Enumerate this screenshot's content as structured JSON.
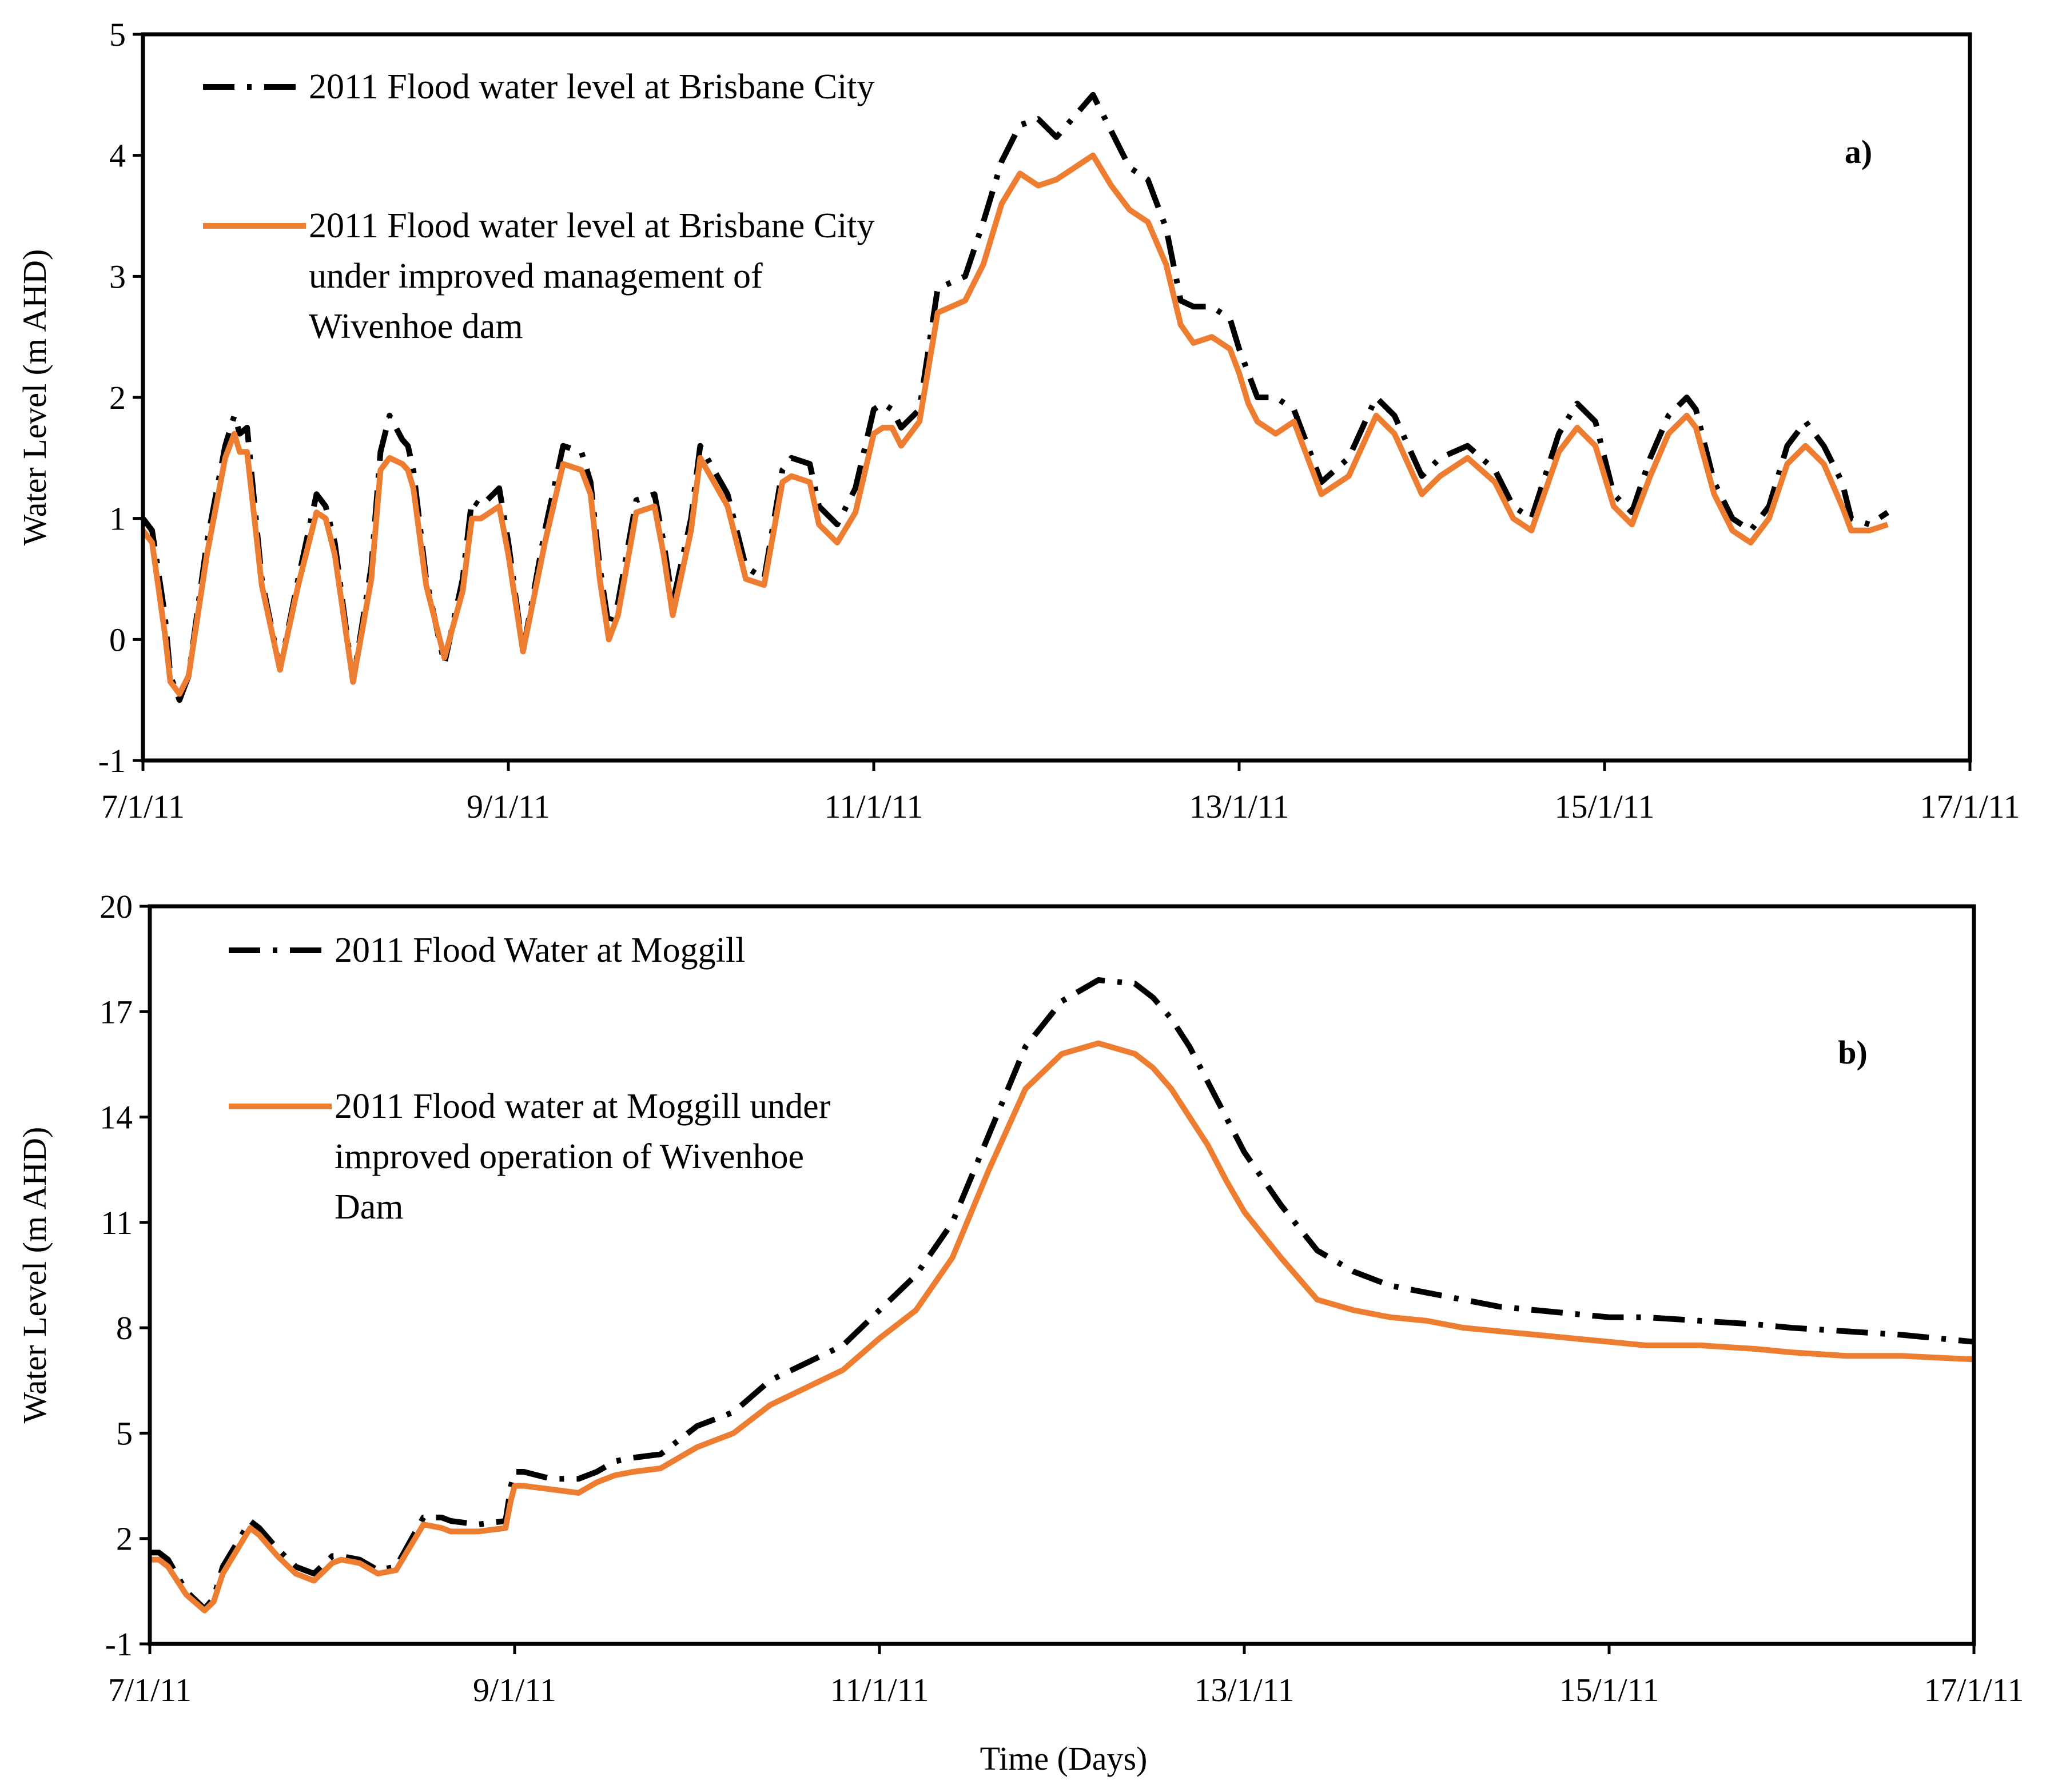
{
  "chart_data": [
    {
      "type": "line",
      "panel_label": "a)",
      "xlabel": "",
      "ylabel": "Water Level (m AHD)",
      "xlim": [
        0,
        10
      ],
      "ylim": [
        -1,
        5
      ],
      "x_tick_values": [
        0,
        2,
        4,
        6,
        8,
        10
      ],
      "x_tick_labels": [
        "7/1/11",
        "9/1/11",
        "11/1/11",
        "13/1/11",
        "15/1/11",
        "17/1/11"
      ],
      "y_ticks": [
        -1,
        0,
        1,
        2,
        3,
        4,
        5
      ],
      "grid": false,
      "legend_position": "top-left",
      "series": [
        {
          "name": "2011 Flood water level at Brisbane City",
          "style": "dash-dot",
          "color": "#000000",
          "x": [
            0,
            0.05,
            0.12,
            0.15,
            0.2,
            0.25,
            0.35,
            0.45,
            0.5,
            0.53,
            0.57,
            0.65,
            0.75,
            0.85,
            0.95,
            1.0,
            1.05,
            1.15,
            1.25,
            1.3,
            1.35,
            1.42,
            1.45,
            1.48,
            1.55,
            1.65,
            1.75,
            1.8,
            1.85,
            1.95,
            2.0,
            2.08,
            2.2,
            2.3,
            2.4,
            2.45,
            2.5,
            2.55,
            2.6,
            2.7,
            2.8,
            2.85,
            2.9,
            3.0,
            3.05,
            3.2,
            3.3,
            3.4,
            3.5,
            3.55,
            3.65,
            3.7,
            3.8,
            3.9,
            4.0,
            4.05,
            4.1,
            4.15,
            4.25,
            4.35,
            4.5,
            4.6,
            4.7,
            4.8,
            4.9,
            5.0,
            5.2,
            5.3,
            5.4,
            5.5,
            5.6,
            5.68,
            5.75,
            5.85,
            5.95,
            6.0,
            6.05,
            6.1,
            6.2,
            6.3,
            6.45,
            6.6,
            6.75,
            6.85,
            7.0,
            7.1,
            7.25,
            7.4,
            7.5,
            7.6,
            7.75,
            7.85,
            7.95,
            8.05,
            8.15,
            8.25,
            8.35,
            8.45,
            8.5,
            8.6,
            8.7,
            8.8,
            8.9,
            9.0,
            9.1,
            9.2,
            9.3,
            9.35,
            9.45,
            9.55
          ],
          "y": [
            1.0,
            0.9,
            0.2,
            -0.3,
            -0.5,
            -0.3,
            0.8,
            1.6,
            1.85,
            1.7,
            1.75,
            0.5,
            -0.25,
            0.5,
            1.2,
            1.1,
            0.8,
            -0.35,
            0.6,
            1.55,
            1.85,
            1.65,
            1.6,
            1.4,
            0.5,
            -0.2,
            0.5,
            1.15,
            1.1,
            1.25,
            0.8,
            -0.1,
            0.9,
            1.6,
            1.55,
            1.3,
            0.6,
            0.1,
            0.3,
            1.15,
            1.2,
            0.8,
            0.3,
            1.0,
            1.6,
            1.2,
            0.6,
            0.5,
            1.4,
            1.5,
            1.45,
            1.1,
            0.95,
            1.25,
            1.9,
            1.95,
            1.9,
            1.75,
            1.9,
            2.9,
            3.0,
            3.45,
            3.95,
            4.25,
            4.3,
            4.15,
            4.5,
            4.2,
            3.9,
            3.8,
            3.4,
            2.8,
            2.75,
            2.75,
            2.65,
            2.4,
            2.2,
            2.0,
            2.0,
            1.9,
            1.3,
            1.5,
            2.0,
            1.85,
            1.35,
            1.5,
            1.6,
            1.4,
            1.1,
            1.0,
            1.7,
            1.95,
            1.8,
            1.2,
            1.05,
            1.5,
            1.85,
            2.0,
            1.9,
            1.3,
            1.0,
            0.9,
            1.1,
            1.6,
            1.8,
            1.6,
            1.3,
            1.0,
            0.95,
            1.05
          ]
        },
        {
          "name": "2011 Flood water level at Brisbane City under improved management of Wivenhoe dam",
          "style": "solid",
          "color": "#ED7D31",
          "x": [
            0,
            0.05,
            0.12,
            0.15,
            0.2,
            0.25,
            0.35,
            0.45,
            0.5,
            0.53,
            0.57,
            0.65,
            0.75,
            0.85,
            0.95,
            1.0,
            1.05,
            1.15,
            1.25,
            1.3,
            1.35,
            1.42,
            1.45,
            1.48,
            1.55,
            1.65,
            1.75,
            1.8,
            1.85,
            1.95,
            2.0,
            2.08,
            2.2,
            2.3,
            2.4,
            2.45,
            2.5,
            2.55,
            2.6,
            2.7,
            2.8,
            2.85,
            2.9,
            3.0,
            3.05,
            3.2,
            3.3,
            3.4,
            3.5,
            3.55,
            3.65,
            3.7,
            3.8,
            3.9,
            4.0,
            4.05,
            4.1,
            4.15,
            4.25,
            4.35,
            4.5,
            4.6,
            4.7,
            4.8,
            4.9,
            5.0,
            5.2,
            5.3,
            5.4,
            5.5,
            5.6,
            5.68,
            5.75,
            5.85,
            5.95,
            6.0,
            6.05,
            6.1,
            6.2,
            6.3,
            6.45,
            6.6,
            6.75,
            6.85,
            7.0,
            7.1,
            7.25,
            7.4,
            7.5,
            7.6,
            7.75,
            7.85,
            7.95,
            8.05,
            8.15,
            8.25,
            8.35,
            8.45,
            8.5,
            8.6,
            8.7,
            8.8,
            8.9,
            9.0,
            9.1,
            9.2,
            9.3,
            9.35,
            9.45,
            9.55
          ],
          "y": [
            0.9,
            0.8,
            0.05,
            -0.35,
            -0.45,
            -0.3,
            0.7,
            1.5,
            1.7,
            1.55,
            1.55,
            0.45,
            -0.25,
            0.45,
            1.05,
            1.0,
            0.7,
            -0.35,
            0.5,
            1.4,
            1.5,
            1.45,
            1.4,
            1.25,
            0.45,
            -0.15,
            0.4,
            1.0,
            1.0,
            1.1,
            0.7,
            -0.1,
            0.8,
            1.45,
            1.4,
            1.2,
            0.5,
            0.0,
            0.2,
            1.05,
            1.1,
            0.7,
            0.2,
            0.9,
            1.5,
            1.1,
            0.5,
            0.45,
            1.3,
            1.35,
            1.3,
            0.95,
            0.8,
            1.05,
            1.7,
            1.75,
            1.75,
            1.6,
            1.8,
            2.7,
            2.8,
            3.1,
            3.6,
            3.85,
            3.75,
            3.8,
            4.0,
            3.75,
            3.55,
            3.45,
            3.1,
            2.6,
            2.45,
            2.5,
            2.4,
            2.2,
            1.95,
            1.8,
            1.7,
            1.8,
            1.2,
            1.35,
            1.85,
            1.7,
            1.2,
            1.35,
            1.5,
            1.3,
            1.0,
            0.9,
            1.55,
            1.75,
            1.6,
            1.1,
            0.95,
            1.35,
            1.7,
            1.85,
            1.75,
            1.2,
            0.9,
            0.8,
            1.0,
            1.45,
            1.6,
            1.45,
            1.1,
            0.9,
            0.9,
            0.95
          ]
        }
      ]
    },
    {
      "type": "line",
      "panel_label": "b)",
      "xlabel": "Time (Days)",
      "ylabel": "Water Level (m AHD)",
      "xlim": [
        0,
        10
      ],
      "ylim": [
        -1,
        20
      ],
      "x_tick_values": [
        0,
        2,
        4,
        6,
        8,
        10
      ],
      "x_tick_labels": [
        "7/1/11",
        "9/1/11",
        "11/1/11",
        "13/1/11",
        "15/1/11",
        "17/1/11"
      ],
      "y_ticks": [
        -1,
        2,
        5,
        8,
        11,
        14,
        17,
        20
      ],
      "grid": false,
      "legend_position": "top-left",
      "series": [
        {
          "name": "2011 Flood Water at Moggill",
          "style": "dash-dot",
          "color": "#000000",
          "x": [
            0,
            0.05,
            0.1,
            0.2,
            0.3,
            0.35,
            0.4,
            0.55,
            0.6,
            0.7,
            0.8,
            0.9,
            1.0,
            1.05,
            1.15,
            1.25,
            1.35,
            1.5,
            1.6,
            1.65,
            1.8,
            1.95,
            1.98,
            2.0,
            2.05,
            2.2,
            2.35,
            2.45,
            2.55,
            2.65,
            2.8,
            3.0,
            3.2,
            3.4,
            3.6,
            3.8,
            4.0,
            4.2,
            4.4,
            4.6,
            4.8,
            5.0,
            5.2,
            5.4,
            5.5,
            5.6,
            5.7,
            5.8,
            5.9,
            6.0,
            6.2,
            6.4,
            6.6,
            6.8,
            7.0,
            7.2,
            7.4,
            7.6,
            7.8,
            8.0,
            8.2,
            8.5,
            8.8,
            9.0,
            9.3,
            9.6,
            10.0
          ],
          "y": [
            1.6,
            1.6,
            1.4,
            0.5,
            0.0,
            0.3,
            1.2,
            2.5,
            2.3,
            1.7,
            1.2,
            1.0,
            1.5,
            1.5,
            1.4,
            1.1,
            1.2,
            2.6,
            2.6,
            2.5,
            2.4,
            2.5,
            3.5,
            3.9,
            3.9,
            3.7,
            3.7,
            3.9,
            4.2,
            4.3,
            4.4,
            5.2,
            5.6,
            6.5,
            7.0,
            7.5,
            8.5,
            9.5,
            11.0,
            13.5,
            16.0,
            17.3,
            17.9,
            17.8,
            17.4,
            16.8,
            16.0,
            15.0,
            14.0,
            13.0,
            11.5,
            10.2,
            9.6,
            9.2,
            9.0,
            8.8,
            8.6,
            8.5,
            8.4,
            8.3,
            8.3,
            8.2,
            8.1,
            8.0,
            7.9,
            7.8,
            7.6
          ]
        },
        {
          "name": "2011 Flood water at Moggill under improved operation of Wivenhoe Dam",
          "style": "solid",
          "color": "#ED7D31",
          "x": [
            0,
            0.05,
            0.1,
            0.2,
            0.3,
            0.35,
            0.4,
            0.55,
            0.6,
            0.7,
            0.8,
            0.9,
            1.0,
            1.05,
            1.15,
            1.25,
            1.35,
            1.5,
            1.6,
            1.65,
            1.8,
            1.95,
            1.98,
            2.0,
            2.05,
            2.2,
            2.35,
            2.45,
            2.55,
            2.65,
            2.8,
            3.0,
            3.2,
            3.4,
            3.6,
            3.8,
            4.0,
            4.2,
            4.4,
            4.6,
            4.8,
            5.0,
            5.2,
            5.4,
            5.5,
            5.6,
            5.7,
            5.8,
            5.9,
            6.0,
            6.2,
            6.4,
            6.6,
            6.8,
            7.0,
            7.2,
            7.4,
            7.6,
            7.8,
            8.0,
            8.2,
            8.5,
            8.8,
            9.0,
            9.3,
            9.6,
            10.0
          ],
          "y": [
            1.4,
            1.4,
            1.2,
            0.4,
            -0.05,
            0.2,
            1.0,
            2.3,
            2.1,
            1.5,
            1.0,
            0.8,
            1.3,
            1.4,
            1.3,
            1.0,
            1.1,
            2.4,
            2.3,
            2.2,
            2.2,
            2.3,
            3.1,
            3.5,
            3.5,
            3.4,
            3.3,
            3.6,
            3.8,
            3.9,
            4.0,
            4.6,
            5.0,
            5.8,
            6.3,
            6.8,
            7.7,
            8.5,
            10.0,
            12.5,
            14.8,
            15.8,
            16.1,
            15.8,
            15.4,
            14.8,
            14.0,
            13.2,
            12.2,
            11.3,
            10.0,
            8.8,
            8.5,
            8.3,
            8.2,
            8.0,
            7.9,
            7.8,
            7.7,
            7.6,
            7.5,
            7.5,
            7.4,
            7.3,
            7.2,
            7.2,
            7.1
          ]
        }
      ]
    }
  ]
}
